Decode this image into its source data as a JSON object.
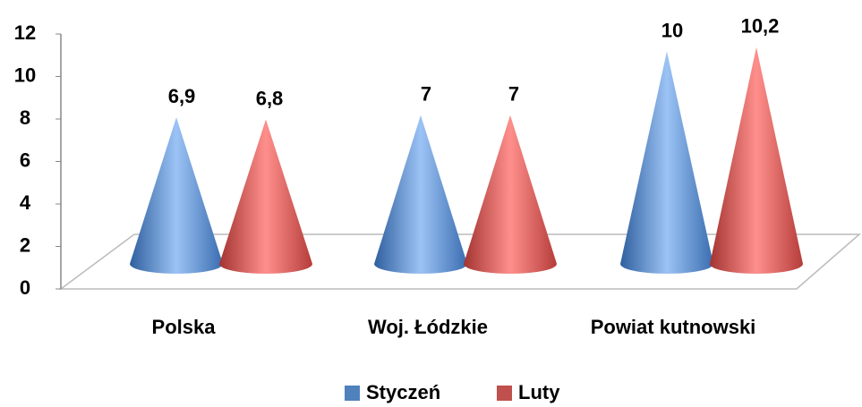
{
  "chart_data": {
    "type": "cone",
    "categories": [
      "Polska",
      "Woj. Łódzkie",
      "Powiat kutnowski"
    ],
    "series": [
      {
        "name": "Styczeń",
        "color": "#4f81bd",
        "values": [
          6.9,
          7,
          10
        ],
        "value_labels": [
          "6,9",
          "7",
          "10"
        ]
      },
      {
        "name": "Luty",
        "color": "#c0504d",
        "values": [
          6.8,
          7,
          10.2
        ],
        "value_labels": [
          "6,8",
          "7",
          "10,2"
        ]
      }
    ],
    "ylim": [
      0,
      12
    ],
    "yticks": [
      0,
      2,
      4,
      6,
      8,
      10,
      12
    ],
    "legend": "bottom"
  }
}
